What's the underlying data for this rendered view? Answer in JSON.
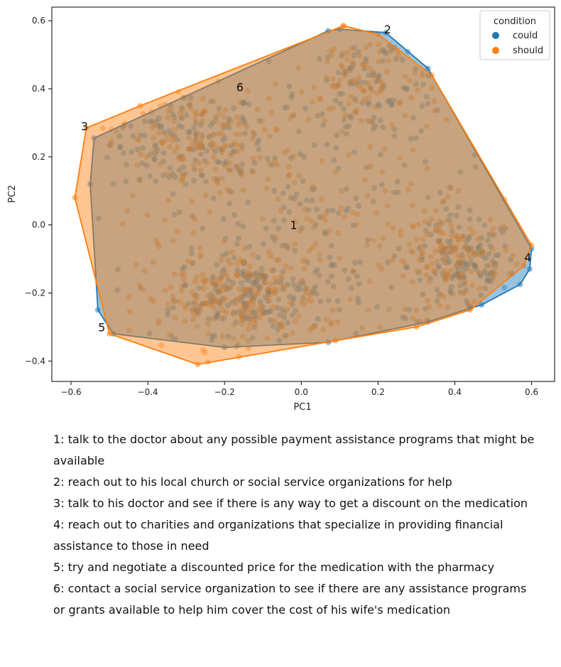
{
  "chart_data": {
    "type": "scatter",
    "xlabel": "PC1",
    "ylabel": "PC2",
    "xlim": [
      -0.65,
      0.66
    ],
    "ylim": [
      -0.46,
      0.64
    ],
    "xticks": [
      -0.6,
      -0.4,
      -0.2,
      0.0,
      0.2,
      0.4,
      0.6
    ],
    "xtick_labels": [
      "−0.6",
      "−0.4",
      "−0.2",
      "0.0",
      "0.2",
      "0.4",
      "0.6"
    ],
    "yticks": [
      -0.4,
      -0.2,
      0.0,
      0.2,
      0.4,
      0.6
    ],
    "ytick_labels": [
      "−0.4",
      "−0.2",
      "0.0",
      "0.2",
      "0.4",
      "0.6"
    ],
    "grid": false,
    "legend": {
      "title": "condition",
      "placement": "top-right"
    },
    "series": [
      {
        "name": "could",
        "color": "#1f77b4",
        "hull": [
          [
            0.1,
            0.575
          ],
          [
            0.22,
            0.565
          ],
          [
            0.33,
            0.46
          ],
          [
            0.6,
            -0.07
          ],
          [
            0.595,
            -0.13
          ],
          [
            0.57,
            -0.175
          ],
          [
            0.47,
            -0.235
          ],
          [
            0.44,
            -0.245
          ],
          [
            0.33,
            -0.285
          ],
          [
            0.07,
            -0.345
          ],
          [
            -0.2,
            -0.36
          ],
          [
            -0.49,
            -0.32
          ],
          [
            -0.53,
            -0.25
          ],
          [
            -0.55,
            0.12
          ],
          [
            -0.54,
            0.255
          ],
          [
            0.07,
            0.57
          ]
        ],
        "clusters": [
          {
            "center": [
              -0.3,
              0.24
            ],
            "spread": [
              0.1,
              0.08
            ],
            "n": 130
          },
          {
            "center": [
              -0.13,
              -0.2
            ],
            "spread": [
              0.1,
              0.06
            ],
            "n": 170
          },
          {
            "center": [
              0.42,
              -0.12
            ],
            "spread": [
              0.07,
              0.07
            ],
            "n": 130
          },
          {
            "center": [
              0.2,
              0.4
            ],
            "spread": [
              0.1,
              0.08
            ],
            "n": 110
          },
          {
            "center": [
              0.0,
              0.0
            ],
            "spread": [
              0.28,
              0.2
            ],
            "n": 190
          }
        ]
      },
      {
        "name": "should",
        "color": "#ff7f0e",
        "hull": [
          [
            0.11,
            0.585
          ],
          [
            0.2,
            0.56
          ],
          [
            0.34,
            0.44
          ],
          [
            0.6,
            -0.06
          ],
          [
            0.58,
            -0.12
          ],
          [
            0.44,
            -0.25
          ],
          [
            0.3,
            -0.3
          ],
          [
            0.09,
            -0.34
          ],
          [
            -0.27,
            -0.41
          ],
          [
            -0.5,
            -0.32
          ],
          [
            -0.59,
            0.08
          ],
          [
            -0.56,
            0.285
          ],
          [
            -0.42,
            0.35
          ],
          [
            0.11,
            0.585
          ]
        ],
        "clusters": [
          {
            "center": [
              -0.3,
              0.25
            ],
            "spread": [
              0.1,
              0.08
            ],
            "n": 130
          },
          {
            "center": [
              -0.18,
              -0.22
            ],
            "spread": [
              0.12,
              0.07
            ],
            "n": 180
          },
          {
            "center": [
              0.4,
              -0.11
            ],
            "spread": [
              0.08,
              0.08
            ],
            "n": 130
          },
          {
            "center": [
              0.18,
              0.42
            ],
            "spread": [
              0.1,
              0.08
            ],
            "n": 110
          },
          {
            "center": [
              0.0,
              0.0
            ],
            "spread": [
              0.28,
              0.2
            ],
            "n": 190
          }
        ]
      }
    ],
    "annotations": [
      {
        "text": "1",
        "x": -0.02,
        "y": 0.0
      },
      {
        "text": "2",
        "x": 0.225,
        "y": 0.575
      },
      {
        "text": "3",
        "x": -0.565,
        "y": 0.29
      },
      {
        "text": "4",
        "x": 0.59,
        "y": -0.095
      },
      {
        "text": "5",
        "x": -0.52,
        "y": -0.3
      },
      {
        "text": "6",
        "x": -0.16,
        "y": 0.405
      }
    ]
  },
  "captions": [
    "1: talk to the doctor about any possible payment assistance programs that might be available",
    "2: reach out to his local church or social service organizations for help",
    "3: talk to his doctor and see if there is any way to get a discount on the medication",
    "4: reach out to charities and organizations that specialize in providing financial assistance to those in need",
    "5: try and negotiate a discounted price for the medication with the pharmacy",
    "6: contact a social service organization to see if there are any assistance programs or grants available to help him cover the cost of his wife's medication"
  ]
}
